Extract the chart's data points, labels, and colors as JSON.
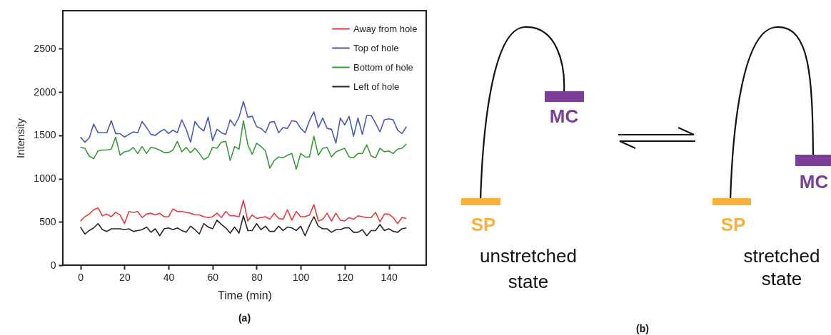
{
  "chart_data": [
    {
      "type": "line",
      "xlabel": "Time (min)",
      "ylabel": "Intensity",
      "annotations": [
        "(a)"
      ],
      "x": [
        0,
        2,
        4,
        6,
        8,
        10,
        12,
        14,
        16,
        18,
        20,
        22,
        24,
        26,
        28,
        30,
        32,
        34,
        36,
        38,
        40,
        42,
        44,
        46,
        48,
        50,
        52,
        54,
        56,
        58,
        60,
        62,
        64,
        66,
        68,
        70,
        72,
        74,
        76,
        78,
        80,
        82,
        84,
        86,
        88,
        90,
        92,
        94,
        96,
        98,
        100,
        102,
        104,
        106,
        108,
        110,
        112,
        114,
        116,
        118,
        120,
        122,
        124,
        126,
        128,
        130,
        132,
        134,
        136,
        138,
        140,
        142,
        144,
        146,
        148
      ],
      "xlim": [
        -8,
        157
      ],
      "xticks": [
        0,
        20,
        40,
        60,
        80,
        100,
        120,
        140
      ],
      "ylim": [
        0,
        2940
      ],
      "yticks": [
        0,
        500,
        1000,
        1500,
        2000,
        2500
      ],
      "grid": false,
      "legend": "top right",
      "series": [
        {
          "name": "Away from hole",
          "color": "#e8383d",
          "values": [
            510,
            560,
            590,
            640,
            660,
            570,
            590,
            560,
            610,
            580,
            480,
            620,
            610,
            620,
            550,
            590,
            600,
            580,
            600,
            560,
            560,
            650,
            620,
            620,
            610,
            600,
            580,
            580,
            560,
            550,
            560,
            600,
            550,
            620,
            570,
            570,
            560,
            750,
            510,
            580,
            540,
            550,
            560,
            530,
            600,
            540,
            530,
            640,
            520,
            620,
            560,
            560,
            580,
            700,
            510,
            530,
            600,
            510,
            600,
            520,
            510,
            550,
            530,
            570,
            560,
            550,
            550,
            610,
            500,
            590,
            590,
            550,
            480,
            550,
            540
          ]
        },
        {
          "name": "Top of hole",
          "color": "#4a5ab4",
          "values": [
            1480,
            1420,
            1470,
            1630,
            1530,
            1530,
            1530,
            1670,
            1520,
            1520,
            1480,
            1510,
            1540,
            1530,
            1660,
            1590,
            1510,
            1500,
            1540,
            1570,
            1520,
            1560,
            1530,
            1680,
            1570,
            1420,
            1660,
            1590,
            1550,
            1710,
            1440,
            1570,
            1530,
            1510,
            1680,
            1610,
            1710,
            1890,
            1710,
            1720,
            1600,
            1580,
            1530,
            1650,
            1660,
            1530,
            1590,
            1580,
            1670,
            1660,
            1580,
            1530,
            1670,
            1770,
            1590,
            1700,
            1580,
            1570,
            1410,
            1700,
            1620,
            1720,
            1490,
            1700,
            1510,
            1730,
            1730,
            1640,
            1540,
            1680,
            1690,
            1680,
            1560,
            1520,
            1600
          ]
        },
        {
          "name": "Bottom of hole",
          "color": "#3a9a3a",
          "values": [
            1360,
            1350,
            1260,
            1230,
            1320,
            1330,
            1330,
            1340,
            1480,
            1270,
            1310,
            1320,
            1360,
            1290,
            1370,
            1290,
            1360,
            1350,
            1330,
            1300,
            1300,
            1330,
            1430,
            1310,
            1360,
            1300,
            1350,
            1290,
            1220,
            1250,
            1360,
            1350,
            1420,
            1430,
            1210,
            1370,
            1340,
            1670,
            1390,
            1280,
            1410,
            1370,
            1320,
            1120,
            1210,
            1250,
            1240,
            1270,
            1290,
            1110,
            1290,
            1250,
            1250,
            1490,
            1270,
            1350,
            1360,
            1250,
            1310,
            1330,
            1350,
            1250,
            1240,
            1290,
            1290,
            1390,
            1260,
            1240,
            1350,
            1310,
            1320,
            1290,
            1340,
            1350,
            1400
          ]
        },
        {
          "name": "Left of hole",
          "color": "#262626",
          "values": [
            440,
            360,
            400,
            430,
            480,
            410,
            390,
            420,
            420,
            420,
            410,
            420,
            390,
            400,
            410,
            440,
            380,
            420,
            340,
            420,
            430,
            410,
            430,
            400,
            380,
            450,
            410,
            360,
            480,
            440,
            420,
            520,
            470,
            430,
            370,
            440,
            370,
            570,
            400,
            400,
            480,
            410,
            450,
            390,
            390,
            450,
            400,
            440,
            430,
            400,
            450,
            340,
            460,
            560,
            450,
            420,
            420,
            380,
            410,
            410,
            430,
            430,
            380,
            380,
            410,
            340,
            400,
            400,
            470,
            400,
            420,
            390,
            380,
            420,
            430
          ]
        }
      ]
    },
    {
      "type": "other",
      "annotations": [
        "SP",
        "MC",
        "unstretched state",
        "SP",
        "MC",
        "stretched state",
        "(b)"
      ]
    }
  ]
}
